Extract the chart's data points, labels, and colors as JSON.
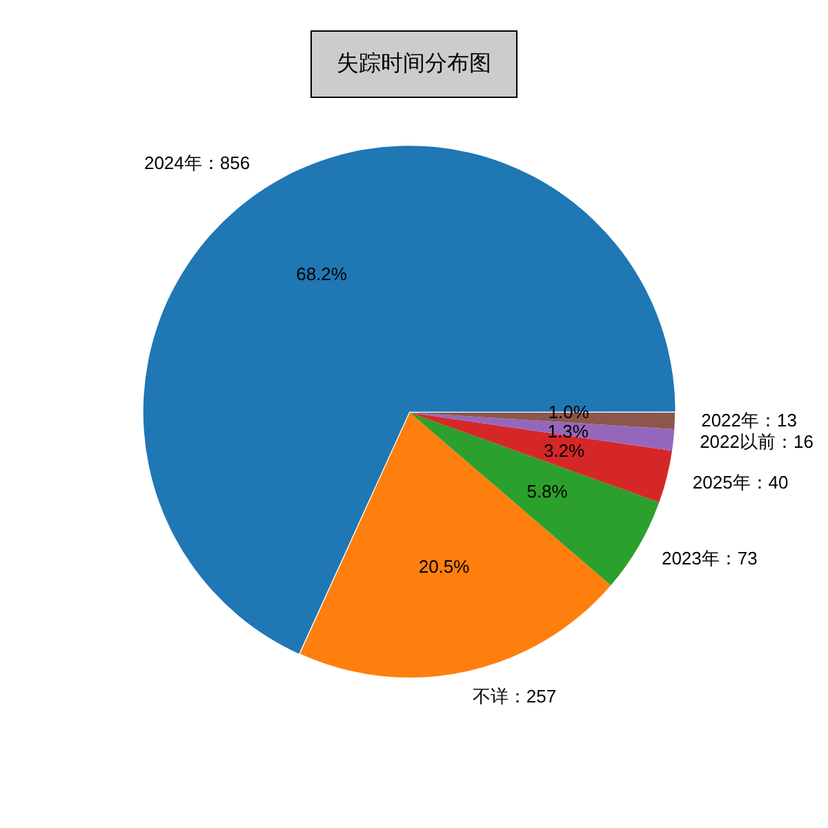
{
  "chart_data": {
    "type": "pie",
    "title": "失踪时间分布图",
    "categories": [
      "2024年：856",
      "不详：257",
      "2023年：73",
      "2025年：40",
      "2022以前：16",
      "2022年：13"
    ],
    "values": [
      68.2,
      20.5,
      5.8,
      3.2,
      1.3,
      1.0
    ],
    "colors": [
      "#1f77b4",
      "#ff7f0e",
      "#2ca02c",
      "#d62728",
      "#9467bd",
      "#8c564b"
    ],
    "value_labels": [
      "68.2%",
      "20.5%",
      "5.8%",
      "3.2%",
      "1.3%",
      "1.0%"
    ]
  }
}
